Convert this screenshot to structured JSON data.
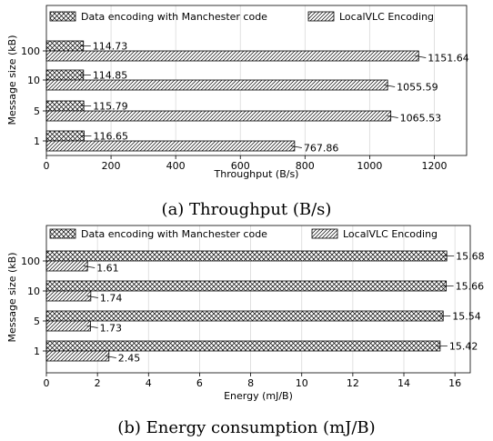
{
  "chart_data": [
    {
      "type": "bar",
      "orientation": "horizontal",
      "caption": "(a) Throughput (B/s)",
      "xlabel": "Throughput (B/s)",
      "ylabel": "Message size (kB)",
      "categories": [
        "100",
        "10",
        "5",
        "1"
      ],
      "xlim": [
        0,
        1300
      ],
      "xticks": [
        0,
        200,
        400,
        600,
        800,
        1000,
        1200
      ],
      "grid": true,
      "legend_position": "top",
      "series": [
        {
          "name": "Data encoding with Manchester code",
          "pattern": "crosshatch",
          "values": [
            114.73,
            114.85,
            115.79,
            116.65
          ],
          "labels": [
            "114.73",
            "114.85",
            "115.79",
            "116.65"
          ]
        },
        {
          "name": "LocalVLC Encoding",
          "pattern": "diagonal",
          "values": [
            1151.64,
            1055.59,
            1065.53,
            767.86
          ],
          "labels": [
            "1151.64",
            "1055.59",
            "1065.53",
            "767.86"
          ]
        }
      ]
    },
    {
      "type": "bar",
      "orientation": "horizontal",
      "caption": "(b) Energy consumption (mJ/B)",
      "xlabel": "Energy (mJ/B)",
      "ylabel": "Message size (kB)",
      "categories": [
        "100",
        "10",
        "5",
        "1"
      ],
      "xlim": [
        0,
        16.6
      ],
      "xticks": [
        0,
        2,
        4,
        6,
        8,
        10,
        12,
        14,
        16
      ],
      "grid": true,
      "legend_position": "top",
      "series": [
        {
          "name": "Data encoding with Manchester code",
          "pattern": "crosshatch",
          "values": [
            15.68,
            15.66,
            15.54,
            15.42
          ],
          "labels": [
            "15.68",
            "15.66",
            "15.54",
            "15.42"
          ]
        },
        {
          "name": "LocalVLC Encoding",
          "pattern": "diagonal",
          "values": [
            1.61,
            1.74,
            1.73,
            2.45
          ],
          "labels": [
            "1.61",
            "1.74",
            "1.73",
            "2.45"
          ]
        }
      ]
    }
  ]
}
